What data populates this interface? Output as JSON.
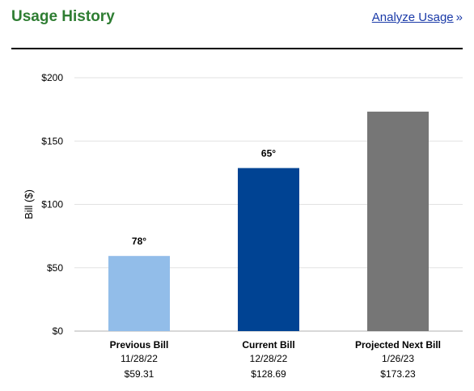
{
  "header": {
    "title": "Usage History",
    "link_label": "Analyze Usage",
    "link_chevron": "»"
  },
  "chart_data": {
    "type": "bar",
    "ylabel": "Bill ($)",
    "ylim": [
      0,
      200
    ],
    "yticks": [
      0,
      50,
      100,
      150,
      200
    ],
    "ytick_labels": [
      "$0",
      "$50",
      "$100",
      "$150",
      "$200"
    ],
    "grid": true,
    "categories": [
      "Previous Bill",
      "Current Bill",
      "Projected Next Bill"
    ],
    "dates": [
      "11/28/22",
      "12/28/22",
      "1/26/23"
    ],
    "amount_labels": [
      "$59.31",
      "$128.69",
      "$173.23"
    ],
    "values": [
      59.31,
      128.69,
      173.23
    ],
    "temperature_labels": [
      "78°",
      "65°",
      ""
    ],
    "colors": [
      "#92bde9",
      "#004393",
      "#767676"
    ]
  }
}
